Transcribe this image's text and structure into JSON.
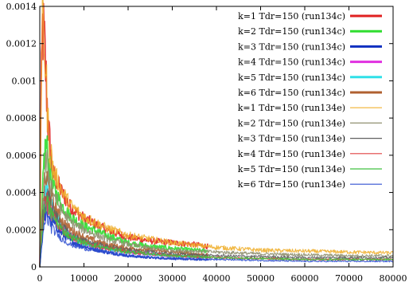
{
  "chart_data": {
    "type": "line",
    "title": "",
    "xlabel": "",
    "ylabel": "",
    "xlim": [
      0,
      80000
    ],
    "ylim": [
      0,
      0.0014
    ],
    "grid": false,
    "legend_position": "top-right",
    "x_ticks": [
      {
        "value": 0,
        "label": "0"
      },
      {
        "value": 10000,
        "label": "10000"
      },
      {
        "value": 20000,
        "label": "20000"
      },
      {
        "value": 30000,
        "label": "30000"
      },
      {
        "value": 40000,
        "label": "40000"
      },
      {
        "value": 50000,
        "label": "50000"
      },
      {
        "value": 60000,
        "label": "60000"
      },
      {
        "value": 70000,
        "label": "70000"
      },
      {
        "value": 80000,
        "label": "80000"
      }
    ],
    "y_ticks": [
      {
        "value": 0,
        "label": "0"
      },
      {
        "value": 0.0002,
        "label": "0.0002"
      },
      {
        "value": 0.0004,
        "label": "0.0004"
      },
      {
        "value": 0.0006,
        "label": "0.0006"
      },
      {
        "value": 0.0008,
        "label": "0.0008"
      },
      {
        "value": 0.001,
        "label": "0.001"
      },
      {
        "value": 0.0012,
        "label": "0.0012"
      },
      {
        "value": 0.0014,
        "label": "0.0014"
      }
    ],
    "series": [
      {
        "name": "k=1 Tdr=150 (run134c)",
        "color": "#e02020",
        "style": "thick",
        "x": [
          0,
          300,
          600,
          1000,
          2000,
          3000,
          5000,
          7000,
          10000,
          15000,
          20000,
          25000,
          30000,
          35000,
          38000
        ],
        "y": [
          0,
          0.0009,
          0.00128,
          0.00122,
          0.00072,
          0.0005,
          0.0004,
          0.00032,
          0.00026,
          0.0002,
          0.00016,
          0.00014,
          0.00013,
          0.00012,
          0.00011
        ]
      },
      {
        "name": "k=2 Tdr=150 (run134c)",
        "color": "#30dd30",
        "style": "thick",
        "x": [
          0,
          500,
          1000,
          1500,
          2000,
          3000,
          5000,
          7000,
          10000,
          15000,
          20000,
          25000,
          30000,
          35000,
          38000
        ],
        "y": [
          0,
          0.0003,
          0.0006,
          0.00065,
          0.00055,
          0.00043,
          0.00033,
          0.00027,
          0.00022,
          0.00017,
          0.00013,
          0.00011,
          0.0001,
          9e-05,
          8.5e-05
        ]
      },
      {
        "name": "k=3 Tdr=150 (run134c)",
        "color": "#1030c0",
        "style": "thick",
        "x": [
          0,
          500,
          1000,
          1500,
          2000,
          3000,
          5000,
          7000,
          10000,
          15000,
          20000,
          25000,
          30000,
          35000,
          38000
        ],
        "y": [
          0,
          0.00015,
          0.00028,
          0.00031,
          0.00028,
          0.00024,
          0.00018,
          0.00014,
          0.00011,
          8e-05,
          6e-05,
          5e-05,
          4.5e-05,
          4e-05,
          4e-05
        ]
      },
      {
        "name": "k=4 Tdr=150 (run134c)",
        "color": "#e030e0",
        "style": "thick",
        "x": [
          0,
          500,
          1000,
          1500,
          2000,
          3000,
          5000,
          7000,
          10000,
          15000,
          20000,
          25000,
          30000,
          35000,
          38000
        ],
        "y": [
          0,
          0.0002,
          0.00033,
          0.00038,
          0.00034,
          0.00028,
          0.00021,
          0.00017,
          0.00013,
          0.0001,
          8e-05,
          7e-05,
          6e-05,
          5.5e-05,
          5e-05
        ]
      },
      {
        "name": "k=5 Tdr=150 (run134c)",
        "color": "#30e0e8",
        "style": "thick",
        "x": [
          0,
          500,
          1000,
          1500,
          2000,
          3000,
          5000,
          7000,
          10000,
          15000,
          20000,
          25000,
          30000,
          35000,
          38000
        ],
        "y": [
          0,
          0.0002,
          0.00036,
          0.00042,
          0.00037,
          0.0003,
          0.00022,
          0.00017,
          0.00013,
          0.0001,
          8e-05,
          7e-05,
          6e-05,
          5.5e-05,
          5e-05
        ]
      },
      {
        "name": "k=6 Tdr=150 (run134c)",
        "color": "#b06030",
        "style": "thick",
        "x": [
          0,
          500,
          1000,
          1500,
          2000,
          3000,
          5000,
          7000,
          10000,
          15000,
          20000,
          25000,
          30000,
          35000,
          38000
        ],
        "y": [
          0,
          0.00025,
          0.00042,
          0.00048,
          0.00042,
          0.00034,
          0.00025,
          0.0002,
          0.00016,
          0.00012,
          0.0001,
          9e-05,
          8e-05,
          7e-05,
          6.5e-05
        ]
      },
      {
        "name": "k=1 Tdr=150 (run134e)",
        "color": "#f0b030",
        "style": "thin",
        "x": [
          0,
          300,
          600,
          1000,
          2000,
          3000,
          5000,
          7000,
          10000,
          15000,
          20000,
          25000,
          30000,
          40000,
          50000,
          60000,
          70000,
          80000
        ],
        "y": [
          0,
          0.00095,
          0.00129,
          0.00124,
          0.0007,
          0.00052,
          0.00041,
          0.00033,
          0.00027,
          0.00021,
          0.00017,
          0.00015,
          0.00013,
          0.000105,
          9e-05,
          8.5e-05,
          8e-05,
          7.5e-05
        ]
      },
      {
        "name": "k=2 Tdr=150 (run134e)",
        "color": "#909070",
        "style": "thin",
        "x": [
          0,
          500,
          1000,
          1500,
          2000,
          3000,
          5000,
          7000,
          10000,
          15000,
          20000,
          25000,
          30000,
          40000,
          50000,
          60000,
          70000,
          80000
        ],
        "y": [
          0,
          0.00025,
          0.0005,
          0.00056,
          0.0005,
          0.0004,
          0.0003,
          0.00024,
          0.0002,
          0.00015,
          0.00012,
          0.0001,
          9e-05,
          8e-05,
          7e-05,
          6.5e-05,
          6e-05,
          6e-05
        ]
      },
      {
        "name": "k=3 Tdr=150 (run134e)",
        "color": "#606060",
        "style": "thin",
        "x": [
          0,
          500,
          1000,
          1500,
          2000,
          3000,
          5000,
          7000,
          10000,
          15000,
          20000,
          25000,
          30000,
          40000,
          50000,
          60000,
          70000,
          80000
        ],
        "y": [
          0,
          0.0002,
          0.00034,
          0.0004,
          0.00036,
          0.0003,
          0.00022,
          0.00017,
          0.00014,
          0.00011,
          9e-05,
          8e-05,
          7e-05,
          6e-05,
          5.5e-05,
          5e-05,
          5e-05,
          5e-05
        ]
      },
      {
        "name": "k=4 Tdr=150 (run134e)",
        "color": "#e04040",
        "style": "thin",
        "x": [
          0,
          500,
          1000,
          1500,
          2000,
          3000,
          5000,
          7000,
          10000,
          15000,
          20000,
          25000,
          30000,
          40000,
          50000,
          60000,
          70000,
          80000
        ],
        "y": [
          0,
          0.00018,
          0.0003,
          0.00036,
          0.00033,
          0.00027,
          0.0002,
          0.00016,
          0.00013,
          0.0001,
          8e-05,
          7e-05,
          6e-05,
          5e-05,
          4.5e-05,
          4e-05,
          4e-05,
          4e-05
        ]
      },
      {
        "name": "k=5 Tdr=150 (run134e)",
        "color": "#40c040",
        "style": "thin",
        "x": [
          0,
          500,
          1000,
          1500,
          2000,
          3000,
          5000,
          7000,
          10000,
          15000,
          20000,
          25000,
          30000,
          40000,
          50000,
          60000,
          70000,
          80000
        ],
        "y": [
          0,
          0.00018,
          0.0003,
          0.00035,
          0.00032,
          0.00027,
          0.0002,
          0.00016,
          0.00013,
          0.0001,
          8e-05,
          7e-05,
          6e-05,
          5e-05,
          4.5e-05,
          4e-05,
          4e-05,
          4e-05
        ]
      },
      {
        "name": "k=6 Tdr=150 (run134e)",
        "color": "#3050d0",
        "style": "thin",
        "x": [
          0,
          500,
          1000,
          1500,
          2000,
          3000,
          5000,
          7000,
          10000,
          15000,
          20000,
          25000,
          30000,
          40000,
          50000,
          60000,
          70000,
          80000
        ],
        "y": [
          0,
          0.00012,
          0.00022,
          0.00027,
          0.00025,
          0.0002,
          0.00015,
          0.00012,
          0.0001,
          8e-05,
          6e-05,
          5e-05,
          4.5e-05,
          4e-05,
          3.5e-05,
          3e-05,
          3e-05,
          3e-05
        ]
      }
    ]
  }
}
